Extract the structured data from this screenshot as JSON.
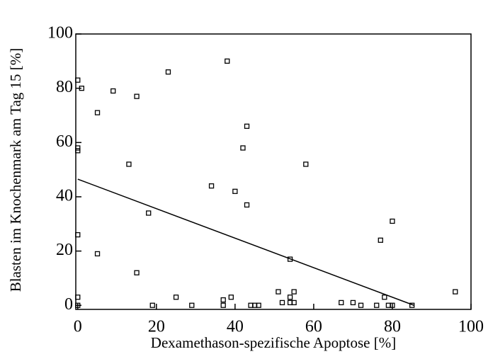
{
  "chart_data": {
    "type": "scatter",
    "xlabel": "Dexamethason-spezifische Apoptose [%]",
    "ylabel": "Blasten im Knochenmark am Tag 15 [%]",
    "x": [
      0,
      1,
      5,
      9,
      15,
      23,
      38,
      0,
      0,
      13,
      43,
      42,
      58,
      34,
      40,
      43,
      18,
      0,
      80,
      77,
      5,
      54,
      15,
      0,
      0,
      19,
      25,
      29,
      37,
      37,
      39,
      44,
      45,
      46,
      51,
      52,
      54,
      54,
      55,
      55,
      67,
      70,
      72,
      76,
      78,
      79,
      80,
      85,
      96
    ],
    "values": [
      83,
      80,
      71,
      79,
      77,
      86,
      90,
      58,
      57,
      52,
      66,
      58,
      52,
      44,
      42,
      37,
      34,
      26,
      31,
      24,
      19,
      17,
      12,
      3,
      0,
      0,
      3,
      0,
      0,
      2,
      3,
      0,
      0,
      0,
      5,
      1,
      3,
      1,
      1,
      5,
      1,
      1,
      0,
      0,
      3,
      0,
      0,
      0,
      5
    ],
    "color": "#000000",
    "trendline": {
      "x": [
        0,
        85.5
      ],
      "y": [
        46.5,
        0
      ]
    },
    "xlim": [
      -0.5,
      100
    ],
    "ylim": [
      -1.5,
      100
    ],
    "xticks": [
      0,
      20,
      40,
      60,
      80,
      100
    ],
    "yticks": [
      0,
      20,
      40,
      60,
      80,
      100
    ]
  }
}
